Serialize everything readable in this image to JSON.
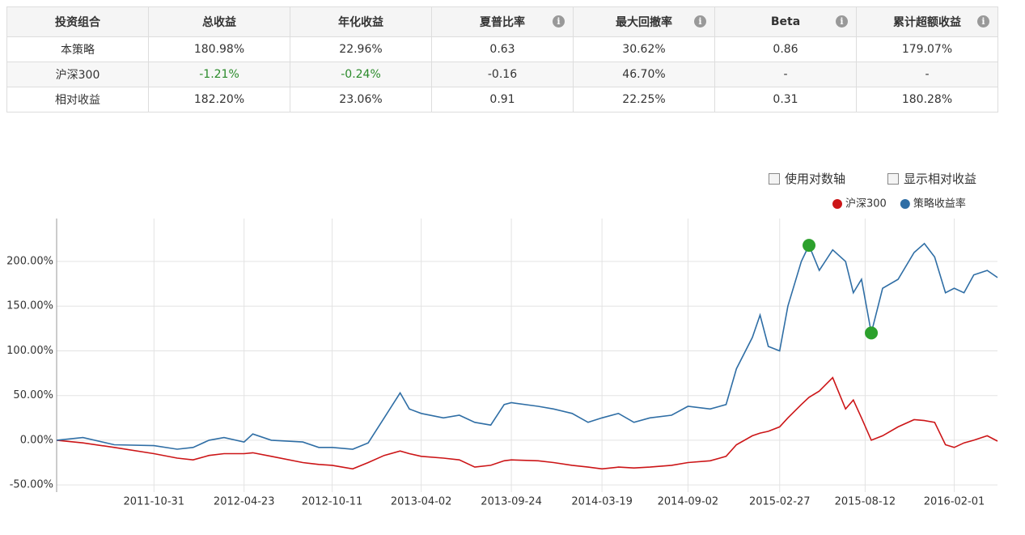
{
  "table": {
    "header": [
      "投资组合",
      "总收益",
      "年化收益",
      "夏普比率",
      "最大回撤率",
      "Beta",
      "累计超额收益"
    ],
    "rows": [
      [
        "本策略",
        "180.98%",
        "22.96%",
        "0.63",
        "30.62%",
        "0.86",
        "179.07%"
      ],
      [
        "沪深300",
        "-1.21%",
        "-0.24%",
        "-0.16",
        "46.70%",
        "-",
        "-"
      ],
      [
        "相对收益",
        "182.20%",
        "23.06%",
        "0.91",
        "22.25%",
        "0.31",
        "180.28%"
      ]
    ]
  },
  "controls": [
    "使用对数轴",
    "显示相对收益"
  ],
  "chart_data": {
    "type": "line",
    "x": [
      "2011-04-25",
      "2011-06-15",
      "2011-08-15",
      "2011-10-31",
      "2011-12-15",
      "2012-01-15",
      "2012-02-15",
      "2012-03-15",
      "2012-04-23",
      "2012-05-10",
      "2012-06-15",
      "2012-08-15",
      "2012-09-15",
      "2012-10-11",
      "2012-11-20",
      "2012-12-20",
      "2013-01-20",
      "2013-02-20",
      "2013-03-10",
      "2013-04-02",
      "2013-05-15",
      "2013-06-15",
      "2013-07-15",
      "2013-08-15",
      "2013-09-10",
      "2013-09-24",
      "2013-11-15",
      "2013-12-15",
      "2014-01-20",
      "2014-02-20",
      "2014-03-19",
      "2014-04-20",
      "2014-05-20",
      "2014-06-20",
      "2014-08-01",
      "2014-09-02",
      "2014-10-15",
      "2014-11-15",
      "2014-12-05",
      "2015-01-05",
      "2015-01-20",
      "2015-02-05",
      "2015-02-27",
      "2015-03-15",
      "2015-04-10",
      "2015-04-25",
      "2015-05-15",
      "2015-06-10",
      "2015-07-05",
      "2015-07-20",
      "2015-08-05",
      "2015-08-24",
      "2015-09-15",
      "2015-10-15",
      "2015-11-15",
      "2015-12-05",
      "2015-12-25",
      "2016-01-15",
      "2016-02-01",
      "2016-02-20",
      "2016-03-10",
      "2016-04-05",
      "2016-04-25"
    ],
    "series": [
      {
        "name": "沪深300",
        "color": "#cc1517",
        "values": [
          0,
          -3,
          -8,
          -15,
          -20,
          -22,
          -17,
          -15,
          -15,
          -14,
          -18,
          -25,
          -27,
          -28,
          -32,
          -25,
          -17,
          -12,
          -15,
          -18,
          -20,
          -22,
          -30,
          -28,
          -23,
          -22,
          -23,
          -25,
          -28,
          -30,
          -32,
          -30,
          -31,
          -30,
          -28,
          -25,
          -23,
          -18,
          -5,
          5,
          8,
          10,
          15,
          25,
          40,
          48,
          55,
          70,
          35,
          45,
          25,
          0,
          5,
          15,
          23,
          22,
          20,
          -5,
          -8,
          -3,
          0,
          5,
          -1
        ]
      },
      {
        "name": "策略收益率",
        "color": "#2f6ea5",
        "values": [
          0,
          3,
          -5,
          -6,
          -10,
          -8,
          0,
          3,
          -2,
          7,
          0,
          -2,
          -8,
          -8,
          -10,
          -3,
          25,
          53,
          35,
          30,
          25,
          28,
          20,
          17,
          40,
          42,
          38,
          35,
          30,
          20,
          25,
          30,
          20,
          25,
          28,
          38,
          35,
          40,
          80,
          115,
          140,
          105,
          100,
          150,
          200,
          218,
          190,
          213,
          200,
          165,
          180,
          120,
          170,
          180,
          210,
          220,
          205,
          165,
          170,
          165,
          185,
          190,
          182
        ]
      }
    ],
    "markers": {
      "color": "#2ca02c",
      "x": [
        "2015-04-25",
        "2015-08-24"
      ],
      "values": [
        218,
        120
      ]
    },
    "xlim": [
      "2011-04-25",
      "2016-04-25"
    ],
    "xticks": [
      "2011-10-31",
      "2012-04-23",
      "2012-10-11",
      "2013-04-02",
      "2013-09-24",
      "2014-03-19",
      "2014-09-02",
      "2015-02-27",
      "2015-08-12",
      "2016-02-01"
    ],
    "ylim": [
      -58,
      248
    ],
    "yticks": [
      {
        "value": -50,
        "label": "-50.00%"
      },
      {
        "value": 0,
        "label": "0.00%"
      },
      {
        "value": 50,
        "label": "50.00%"
      },
      {
        "value": 100,
        "label": "100.00%"
      },
      {
        "value": 150,
        "label": "150.00%"
      },
      {
        "value": 200,
        "label": "200.00%"
      }
    ],
    "grid": true
  }
}
